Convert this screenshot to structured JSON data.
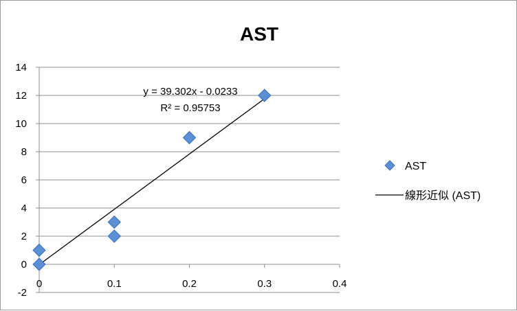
{
  "chart_data": {
    "type": "scatter",
    "title": "AST",
    "xlabel": "",
    "ylabel": "",
    "xlim": [
      0,
      0.4
    ],
    "ylim": [
      -2,
      14
    ],
    "x_ticks": [
      "0",
      "0.1",
      "0.2",
      "0.3",
      "0.4"
    ],
    "y_ticks": [
      "-2",
      "0",
      "2",
      "4",
      "6",
      "8",
      "10",
      "12",
      "14"
    ],
    "grid": "horizontal",
    "legend_position": "right",
    "series": [
      {
        "name": "AST",
        "kind": "points",
        "marker": "diamond",
        "color": "#5b8fd6",
        "points": [
          {
            "x": 0,
            "y": 0
          },
          {
            "x": 0,
            "y": 1
          },
          {
            "x": 0.1,
            "y": 2
          },
          {
            "x": 0.1,
            "y": 3
          },
          {
            "x": 0.2,
            "y": 9
          },
          {
            "x": 0.3,
            "y": 12
          }
        ]
      },
      {
        "name": "線形近似 (AST)",
        "kind": "trendline",
        "color": "#000000",
        "slope": 39.302,
        "intercept": -0.0233,
        "x_range": [
          0,
          0.3
        ]
      }
    ],
    "annotations": [
      "y = 39.302x - 0.0233",
      "R² = 0.95753"
    ]
  }
}
